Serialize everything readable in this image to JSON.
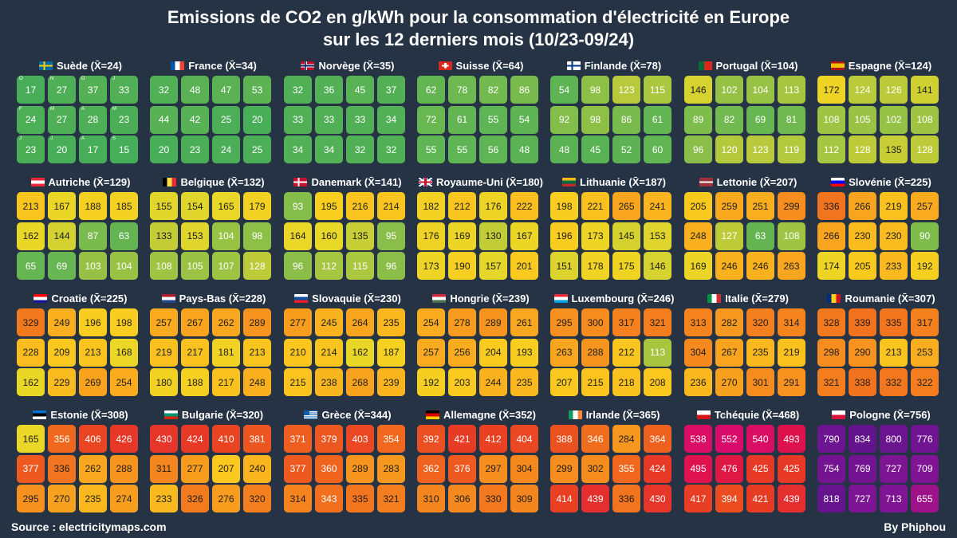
{
  "title_line1": "Emissions de CO2 en g/kWh pour la consommation d'électricité en Europe",
  "title_line2": "sur les 12 derniers mois (10/23-09/24)",
  "source": "Source : electricitymaps.com",
  "author": "By Phiphou",
  "chart_data": {
    "type": "heatmap",
    "unit": "g/kWh",
    "month_labels": [
      "O",
      "N",
      "D",
      "J",
      "F",
      "M",
      "A",
      "M",
      "J",
      "J",
      "A",
      "S"
    ],
    "countries": [
      {
        "label": "Suède (X̄=24)",
        "flag": "se",
        "values": [
          17,
          27,
          37,
          33,
          24,
          27,
          28,
          23,
          23,
          20,
          17,
          15
        ]
      },
      {
        "label": "France (X̄=34)",
        "flag": "fr",
        "values": [
          32,
          48,
          47,
          53,
          44,
          42,
          25,
          20,
          20,
          23,
          24,
          25
        ]
      },
      {
        "label": "Norvège (X̄=35)",
        "flag": "no",
        "values": [
          32,
          36,
          45,
          37,
          33,
          33,
          33,
          34,
          34,
          34,
          32,
          32
        ]
      },
      {
        "label": "Suisse (X̄=64)",
        "flag": "ch",
        "values": [
          62,
          78,
          82,
          86,
          72,
          61,
          55,
          54,
          55,
          55,
          56,
          48
        ]
      },
      {
        "label": "Finlande (X̄=78)",
        "flag": "fi",
        "values": [
          54,
          98,
          123,
          115,
          92,
          98,
          86,
          61,
          48,
          45,
          52,
          60
        ]
      },
      {
        "label": "Portugal (X̄=104)",
        "flag": "pt",
        "values": [
          146,
          102,
          104,
          113,
          89,
          82,
          69,
          81,
          96,
          120,
          123,
          119
        ]
      },
      {
        "label": "Espagne (X̄=124)",
        "flag": "es",
        "values": [
          172,
          124,
          126,
          141,
          108,
          105,
          102,
          108,
          112,
          128,
          135,
          128
        ]
      },
      {
        "label": "Autriche (X̄=129)",
        "flag": "at",
        "values": [
          213,
          167,
          188,
          185,
          162,
          144,
          87,
          63,
          65,
          69,
          103,
          104
        ]
      },
      {
        "label": "Belgique (X̄=132)",
        "flag": "be",
        "values": [
          155,
          154,
          165,
          179,
          133,
          153,
          104,
          98,
          108,
          105,
          107,
          128
        ]
      },
      {
        "label": "Danemark (X̄=141)",
        "flag": "dk",
        "values": [
          93,
          195,
          216,
          214,
          164,
          160,
          135,
          95,
          96,
          112,
          115,
          96
        ]
      },
      {
        "label": "Royaume-Uni (X̄=180)",
        "flag": "gb",
        "values": [
          182,
          212,
          176,
          222,
          176,
          169,
          130,
          167,
          173,
          190,
          157,
          201
        ]
      },
      {
        "label": "Lithuanie (X̄=187)",
        "flag": "lt",
        "values": [
          198,
          221,
          265,
          241,
          196,
          173,
          145,
          153,
          151,
          178,
          175,
          146
        ]
      },
      {
        "label": "Lettonie (X̄=207)",
        "flag": "lv",
        "values": [
          205,
          259,
          251,
          299,
          248,
          127,
          63,
          108,
          169,
          246,
          246,
          263
        ]
      },
      {
        "label": "Slovénie (X̄=225)",
        "flag": "si",
        "values": [
          336,
          266,
          219,
          257,
          266,
          230,
          230,
          90,
          174,
          205,
          233,
          192
        ]
      },
      {
        "label": "Croatie (X̄=225)",
        "flag": "hr",
        "values": [
          329,
          249,
          196,
          198,
          228,
          209,
          213,
          168,
          162,
          229,
          269,
          254
        ]
      },
      {
        "label": "Pays-Bas (X̄=228)",
        "flag": "nl",
        "values": [
          257,
          267,
          262,
          289,
          219,
          217,
          181,
          213,
          180,
          188,
          217,
          248
        ]
      },
      {
        "label": "Slovaquie (X̄=230)",
        "flag": "sk",
        "values": [
          277,
          245,
          264,
          235,
          210,
          214,
          162,
          187,
          215,
          238,
          268,
          239
        ]
      },
      {
        "label": "Hongrie (X̄=239)",
        "flag": "hu",
        "values": [
          254,
          278,
          289,
          261,
          257,
          256,
          204,
          193,
          192,
          203,
          244,
          235
        ]
      },
      {
        "label": "Luxembourg (X̄=246)",
        "flag": "lu",
        "values": [
          295,
          300,
          317,
          321,
          263,
          288,
          212,
          113,
          207,
          215,
          218,
          208
        ]
      },
      {
        "label": "Italie (X̄=279)",
        "flag": "it",
        "values": [
          313,
          282,
          320,
          314,
          304,
          267,
          235,
          219,
          236,
          270,
          301,
          291
        ]
      },
      {
        "label": "Roumanie (X̄=307)",
        "flag": "ro",
        "values": [
          328,
          339,
          335,
          317,
          298,
          290,
          213,
          253,
          321,
          338,
          332,
          322
        ]
      },
      {
        "label": "Estonie (X̄=308)",
        "flag": "ee",
        "values": [
          165,
          356,
          406,
          426,
          377,
          336,
          262,
          288,
          295,
          270,
          235,
          274
        ]
      },
      {
        "label": "Bulgarie (X̄=320)",
        "flag": "bg",
        "values": [
          430,
          424,
          410,
          381,
          311,
          277,
          207,
          240,
          233,
          326,
          276,
          320
        ]
      },
      {
        "label": "Grèce (X̄=344)",
        "flag": "gr",
        "values": [
          371,
          379,
          403,
          354,
          377,
          360,
          289,
          283,
          314,
          343,
          335,
          321
        ]
      },
      {
        "label": "Allemagne (X̄=352)",
        "flag": "de",
        "values": [
          392,
          421,
          412,
          404,
          362,
          376,
          297,
          304,
          310,
          306,
          330,
          309
        ]
      },
      {
        "label": "Irlande (X̄=365)",
        "flag": "ie",
        "values": [
          388,
          346,
          284,
          364,
          299,
          302,
          355,
          424,
          414,
          439,
          336,
          430
        ]
      },
      {
        "label": "Tchéquie (X̄=468)",
        "flag": "cz",
        "values": [
          538,
          552,
          540,
          493,
          495,
          476,
          425,
          425,
          417,
          394,
          421,
          439
        ]
      },
      {
        "label": "Pologne (X̄=756)",
        "flag": "pl",
        "values": [
          790,
          834,
          800,
          776,
          754,
          769,
          727,
          709,
          818,
          727,
          713,
          655
        ]
      }
    ]
  }
}
